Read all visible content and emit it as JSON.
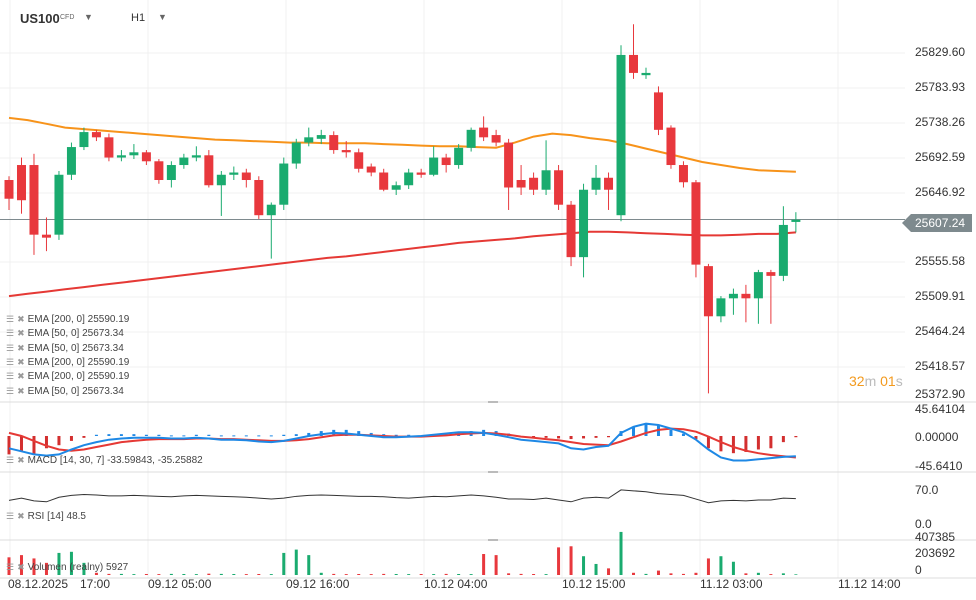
{
  "header": {
    "symbol": "US100",
    "instrument_type": "CFD",
    "timeframe": "H1"
  },
  "price_axis": [
    "25829.60",
    "25783.93",
    "25738.26",
    "25692.59",
    "25646.92",
    "25555.58",
    "25509.91",
    "25464.24",
    "25418.57",
    "25372.90"
  ],
  "current_price": "25607.24",
  "timer": {
    "m": "32",
    "m_unit": "m",
    "s": "01",
    "s_unit": "s"
  },
  "legends": [
    "EMA [200,  0] 25590.19",
    "EMA [50,  0] 25673.34",
    "EMA [50,  0] 25673.34",
    "EMA [200,  0] 25590.19",
    "EMA [200,  0] 25590.19",
    "EMA [50,  0] 25673.34"
  ],
  "macd": {
    "label": "MACD [14, 30, 7] -33.59843,  -35.25882",
    "axis": [
      "45.64104",
      "0.00000",
      "-45.6410"
    ]
  },
  "rsi": {
    "label": "RSI [14] 48.5",
    "axis": [
      "70.0",
      "0.0"
    ]
  },
  "volume": {
    "label": "Volumen (realny)  5927",
    "axis": [
      "407385",
      "203692",
      "0"
    ]
  },
  "time_axis": [
    "08.12.2025",
    "17:00",
    "09.12  05:00",
    "09.12  16:00",
    "10.12  04:00",
    "10.12  15:00",
    "11.12  03:00",
    "11.12  14:00"
  ],
  "colors": {
    "up": "#1aab6f",
    "down": "#e8383d",
    "ema50": "#f7931a",
    "ema200": "#e53935"
  },
  "chart_data": {
    "type": "candlestick",
    "price_range": [
      25372.9,
      25829.6
    ],
    "candles": [
      [
        25660,
        25665,
        25620,
        25635
      ],
      [
        25680,
        25690,
        25615,
        25633
      ],
      [
        25680,
        25695,
        25560,
        25587
      ],
      [
        25587,
        25610,
        25565,
        25583
      ],
      [
        25587,
        25672,
        25580,
        25667
      ],
      [
        25667,
        25710,
        25660,
        25704
      ],
      [
        25704,
        25730,
        25700,
        25724
      ],
      [
        25724,
        25727,
        25712,
        25717
      ],
      [
        25717,
        25722,
        25685,
        25690
      ],
      [
        25690,
        25700,
        25685,
        25693
      ],
      [
        25693,
        25708,
        25688,
        25697
      ],
      [
        25697,
        25700,
        25680,
        25685
      ],
      [
        25685,
        25688,
        25655,
        25660
      ],
      [
        25660,
        25685,
        25650,
        25680
      ],
      [
        25680,
        25695,
        25675,
        25690
      ],
      [
        25690,
        25705,
        25685,
        25693
      ],
      [
        25693,
        25700,
        25650,
        25653
      ],
      [
        25653,
        25672,
        25612,
        25667
      ],
      [
        25667,
        25678,
        25660,
        25670
      ],
      [
        25670,
        25675,
        25650,
        25660
      ],
      [
        25660,
        25665,
        25608,
        25613
      ],
      [
        25613,
        25630,
        25555,
        25627
      ],
      [
        25627,
        25690,
        25620,
        25682
      ],
      [
        25682,
        25715,
        25675,
        25710
      ],
      [
        25710,
        25730,
        25705,
        25717
      ],
      [
        25715,
        25727,
        25708,
        25720
      ],
      [
        25720,
        25725,
        25695,
        25700
      ],
      [
        25700,
        25712,
        25690,
        25697
      ],
      [
        25697,
        25702,
        25670,
        25675
      ],
      [
        25678,
        25682,
        25665,
        25670
      ],
      [
        25670,
        25675,
        25645,
        25647
      ],
      [
        25647,
        25658,
        25640,
        25653
      ],
      [
        25653,
        25675,
        25648,
        25670
      ],
      [
        25670,
        25675,
        25663,
        25667
      ],
      [
        25667,
        25705,
        25665,
        25690
      ],
      [
        25690,
        25695,
        25670,
        25680
      ],
      [
        25680,
        25708,
        25675,
        25703
      ],
      [
        25703,
        25730,
        25698,
        25727
      ],
      [
        25730,
        25745,
        25712,
        25717
      ],
      [
        25720,
        25727,
        25705,
        25710
      ],
      [
        25710,
        25715,
        25620,
        25650
      ],
      [
        25660,
        25680,
        25640,
        25650
      ],
      [
        25663,
        25670,
        25640,
        25647
      ],
      [
        25647,
        25713,
        25640,
        25673
      ],
      [
        25673,
        25680,
        25620,
        25627
      ],
      [
        25627,
        25632,
        25545,
        25557
      ],
      [
        25557,
        25655,
        25530,
        25647
      ],
      [
        25647,
        25680,
        25640,
        25663
      ],
      [
        25663,
        25670,
        25620,
        25647
      ],
      [
        25613,
        25840,
        25605,
        25827
      ],
      [
        25827,
        25868,
        25795,
        25803
      ],
      [
        25800,
        25810,
        25795,
        25803
      ],
      [
        25777,
        25785,
        25720,
        25727
      ],
      [
        25730,
        25733,
        25675,
        25680
      ],
      [
        25680,
        25685,
        25650,
        25657
      ],
      [
        25657,
        25660,
        25530,
        25547
      ],
      [
        25545,
        25548,
        25375,
        25478
      ],
      [
        25478,
        25505,
        25470,
        25502
      ],
      [
        25502,
        25515,
        25480,
        25508
      ],
      [
        25508,
        25520,
        25470,
        25502
      ],
      [
        25502,
        25540,
        25468,
        25537
      ],
      [
        25537,
        25540,
        25468,
        25532
      ],
      [
        25532,
        25625,
        25525,
        25600
      ],
      [
        25604,
        25617,
        25590,
        25607
      ]
    ],
    "ema50": [
      25743,
      25740,
      25735,
      25730,
      25728,
      25726,
      25724,
      25722,
      25720,
      25718,
      25716,
      25714,
      25713,
      25712,
      25711,
      25710,
      25710,
      25709,
      25709,
      25709,
      25708,
      25707,
      25706,
      25705,
      25705,
      25704,
      25703,
      25710,
      25718,
      25722,
      25720,
      25716,
      25713,
      25708,
      25702,
      25696,
      25690,
      25684,
      25680,
      25676,
      25673,
      25672,
      25671
    ],
    "ema200": [
      25505,
      25508,
      25511,
      25514,
      25517,
      25520,
      25523,
      25526,
      25529,
      25532,
      25535,
      25538,
      25541,
      25544,
      25547,
      25550,
      25553,
      25556,
      25558,
      25561,
      25564,
      25567,
      25570,
      25573,
      25576,
      25578,
      25580,
      25582,
      25585,
      25587,
      25589,
      25591,
      25591,
      25590,
      25589,
      25588,
      25587,
      25586,
      25586,
      25587,
      25588,
      25588,
      25590
    ],
    "macd_hist": [
      -30,
      -25,
      -30,
      -20,
      -15,
      -8,
      -3,
      2,
      3,
      3,
      3,
      2,
      2,
      1,
      1,
      2,
      2,
      1,
      1,
      1,
      1,
      1,
      2,
      3,
      5,
      8,
      10,
      10,
      8,
      5,
      3,
      2,
      2,
      1,
      1,
      3,
      5,
      8,
      10,
      8,
      4,
      0,
      -2,
      -3,
      -4,
      -5,
      -4,
      -3,
      -2,
      8,
      15,
      20,
      18,
      10,
      4,
      -5,
      -20,
      -25,
      -28,
      -26,
      -22,
      -20,
      -10,
      -2
    ],
    "macd_line": [
      -20,
      -25,
      -30,
      -32,
      -30,
      -22,
      -15,
      -10,
      -6,
      -4,
      -3,
      -3,
      -3,
      -4,
      -4,
      -3,
      -4,
      -6,
      -6,
      -7,
      -9,
      -10,
      -8,
      -4,
      0,
      3,
      5,
      4,
      2,
      0,
      -2,
      -2,
      -1,
      0,
      2,
      4,
      6,
      6,
      5,
      2,
      -2,
      -6,
      -8,
      -10,
      -12,
      -20,
      -22,
      -18,
      -16,
      5,
      15,
      20,
      18,
      12,
      6,
      -6,
      -22,
      -35,
      -40,
      -40,
      -38,
      -36,
      -34,
      -33
    ],
    "signal_line": [
      5,
      0,
      -8,
      -16,
      -22,
      -24,
      -22,
      -18,
      -14,
      -10,
      -8,
      -6,
      -5,
      -5,
      -5,
      -4,
      -4,
      -5,
      -5,
      -6,
      -7,
      -8,
      -8,
      -7,
      -5,
      -2,
      1,
      2,
      2,
      1,
      0,
      -1,
      -1,
      -1,
      0,
      1,
      3,
      4,
      5,
      4,
      2,
      -1,
      -3,
      -5,
      -7,
      -10,
      -13,
      -14,
      -15,
      -9,
      -2,
      5,
      10,
      12,
      11,
      7,
      -1,
      -10,
      -18,
      -24,
      -28,
      -31,
      -33,
      -35
    ],
    "rsi": [
      45,
      50,
      44,
      42,
      52,
      56,
      58,
      57,
      55,
      55,
      56,
      55,
      54,
      53,
      55,
      56,
      55,
      54,
      53,
      52,
      50,
      48,
      50,
      54,
      56,
      57,
      56,
      55,
      54,
      54,
      53,
      51,
      50,
      52,
      54,
      53,
      55,
      57,
      55,
      52,
      48,
      48,
      47,
      50,
      46,
      42,
      50,
      52,
      50,
      68,
      66,
      64,
      60,
      58,
      56,
      48,
      40,
      44,
      45,
      44,
      46,
      46,
      50,
      49
    ],
    "volume": [
      160000,
      180000,
      150000,
      110000,
      200000,
      210000,
      110000,
      20000,
      10000,
      10000,
      8000,
      9000,
      8000,
      10000,
      9000,
      8000,
      12000,
      10000,
      9000,
      8000,
      9000,
      8000,
      200000,
      230000,
      180000,
      20000,
      10000,
      8000,
      9000,
      8000,
      10000,
      9000,
      8000,
      9000,
      8000,
      10000,
      9000,
      8000,
      190000,
      180000,
      15000,
      10000,
      9000,
      8000,
      250000,
      260000,
      170000,
      100000,
      60000,
      390000,
      20000,
      10000,
      40000,
      15000,
      10000,
      20000,
      150000,
      170000,
      120000,
      15000,
      20000,
      8000,
      15000,
      5927
    ]
  }
}
